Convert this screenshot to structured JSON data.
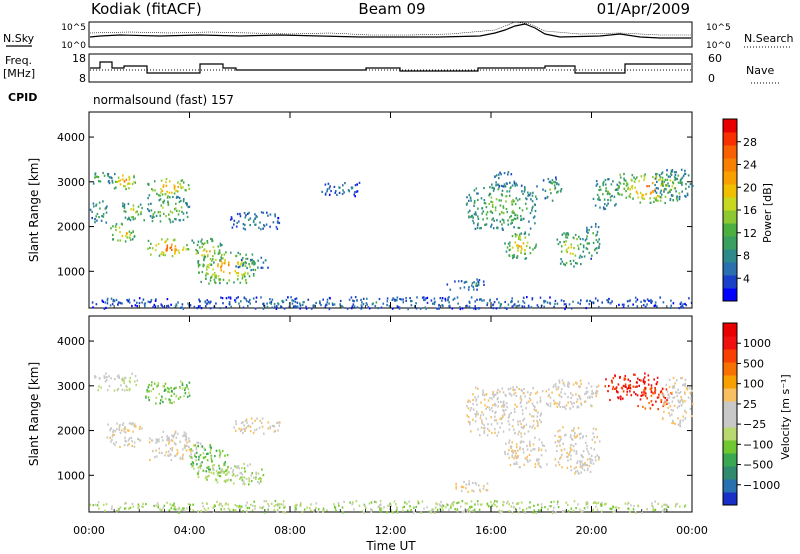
{
  "header": {
    "station": "Kodiak (fitACF)",
    "beam": "Beam 09",
    "date": "01/Apr/2009"
  },
  "noise_panel": {
    "left_label": "N.Sky",
    "right_label": "N.Search",
    "left_ticks": [
      "10^5",
      "10^0"
    ],
    "right_ticks": [
      "10^5",
      "10^0"
    ]
  },
  "freq_panel": {
    "left_label_line1": "Freq.",
    "left_label_line2": "[MHz]",
    "right_label": "Nave",
    "left_ticks": [
      "18",
      "8"
    ],
    "right_ticks": [
      "60",
      "0"
    ]
  },
  "cpid": {
    "label": "CPID",
    "text": "normalsound (fast) 157"
  },
  "chart_data": [
    {
      "type": "heatmap",
      "parameter": "Power",
      "ylabel": "Slant Range [km]",
      "ylim": [
        180,
        4560
      ],
      "yticks": [
        "1000",
        "2000",
        "3000",
        "4000"
      ],
      "xlim": [
        0,
        24
      ],
      "colorbar": {
        "label": "Power [dB]",
        "ticks": [
          "4",
          "8",
          "12",
          "16",
          "20",
          "24",
          "28"
        ],
        "range": [
          0,
          32
        ],
        "colors": [
          "#0000ff",
          "#1a3fc8",
          "#2a6fb0",
          "#2e8a8a",
          "#3aa060",
          "#4cb040",
          "#8cc830",
          "#c8d820",
          "#f0c000",
          "#f8a000",
          "#f88000",
          "#f86000",
          "#f83000",
          "#e80000"
        ]
      },
      "echo_regions": [
        {
          "t": [
            0.0,
            0.9
          ],
          "r": [
            2950,
            3250
          ],
          "v": 14
        },
        {
          "t": [
            0.9,
            1.9
          ],
          "r": [
            2850,
            3250
          ],
          "v": 24
        },
        {
          "t": [
            0.0,
            0.7
          ],
          "r": [
            2100,
            2600
          ],
          "v": 12
        },
        {
          "t": [
            0.8,
            1.8
          ],
          "r": [
            1650,
            2100
          ],
          "v": 22
        },
        {
          "t": [
            1.3,
            2.2
          ],
          "r": [
            2150,
            2600
          ],
          "v": 18
        },
        {
          "t": [
            2.3,
            4.0
          ],
          "r": [
            2700,
            3100
          ],
          "v": 24
        },
        {
          "t": [
            2.3,
            4.0
          ],
          "r": [
            2100,
            2700
          ],
          "v": 16
        },
        {
          "t": [
            2.3,
            4.0
          ],
          "r": [
            1350,
            1750
          ],
          "v": 27
        },
        {
          "t": [
            4.0,
            5.3
          ],
          "r": [
            1150,
            1750
          ],
          "v": 20
        },
        {
          "t": [
            4.3,
            6.6
          ],
          "r": [
            750,
            1450
          ],
          "v": 24
        },
        {
          "t": [
            5.6,
            7.6
          ],
          "r": [
            1950,
            2350
          ],
          "v": 8
        },
        {
          "t": [
            5.8,
            7.2
          ],
          "r": [
            1050,
            1350
          ],
          "v": 10
        },
        {
          "t": [
            9.2,
            10.8
          ],
          "r": [
            2700,
            3000
          ],
          "v": 7
        },
        {
          "t": [
            15.0,
            17.8
          ],
          "r": [
            1950,
            3000
          ],
          "v": 14
        },
        {
          "t": [
            16.5,
            17.8
          ],
          "r": [
            1300,
            1900
          ],
          "v": 20
        },
        {
          "t": [
            14.2,
            15.8
          ],
          "r": [
            600,
            850
          ],
          "v": 8
        },
        {
          "t": [
            16.0,
            17.0
          ],
          "r": [
            2900,
            3250
          ],
          "v": 10
        },
        {
          "t": [
            18.6,
            19.7
          ],
          "r": [
            1100,
            1900
          ],
          "v": 18
        },
        {
          "t": [
            19.7,
            20.3
          ],
          "r": [
            1300,
            2100
          ],
          "v": 14
        },
        {
          "t": [
            18.0,
            18.8
          ],
          "r": [
            2600,
            3150
          ],
          "v": 12
        },
        {
          "t": [
            20.0,
            21.0
          ],
          "r": [
            2400,
            3100
          ],
          "v": 12
        },
        {
          "t": [
            21.0,
            23.6
          ],
          "r": [
            2550,
            3200
          ],
          "v": 25
        },
        {
          "t": [
            22.5,
            24.0
          ],
          "r": [
            2600,
            3300
          ],
          "v": 12
        },
        {
          "t": [
            0.0,
            24.0
          ],
          "r": [
            180,
            450
          ],
          "v": 6
        }
      ]
    },
    {
      "type": "heatmap",
      "parameter": "Velocity",
      "ylabel": "Slant Range [km]",
      "ylim": [
        180,
        4560
      ],
      "yticks": [
        "1000",
        "2000",
        "3000",
        "4000"
      ],
      "xlim": [
        0,
        24
      ],
      "xticks": [
        "00:00",
        "04:00",
        "08:00",
        "12:00",
        "16:00",
        "20:00",
        "00:00"
      ],
      "xlabel": "Time UT",
      "colorbar": {
        "label": "Velocity [m s^-1]",
        "ticks": [
          "1000",
          "500",
          "100",
          "25",
          "−25",
          "−100",
          "−500",
          "−1000"
        ],
        "colors": [
          "#1830c8",
          "#2870b0",
          "#2f8a6e",
          "#3aa850",
          "#70c830",
          "#b8d870",
          "#c8c8c8",
          "#c8c8c8",
          "#f8c060",
          "#f8a000",
          "#f87000",
          "#f84000",
          "#f01010",
          "#e80000"
        ]
      },
      "echo_regions": [
        {
          "t": [
            0.0,
            1.9
          ],
          "r": [
            2900,
            3300
          ],
          "v": 6
        },
        {
          "t": [
            2.2,
            4.0
          ],
          "r": [
            2600,
            3150
          ],
          "v": 4
        },
        {
          "t": [
            0.7,
            2.2
          ],
          "r": [
            1650,
            2200
          ],
          "v": 7
        },
        {
          "t": [
            2.3,
            4.5
          ],
          "r": [
            1350,
            2000
          ],
          "v": 7
        },
        {
          "t": [
            4.0,
            5.5
          ],
          "r": [
            1050,
            1750
          ],
          "v": 4
        },
        {
          "t": [
            4.3,
            7.0
          ],
          "r": [
            800,
            1300
          ],
          "v": 5
        },
        {
          "t": [
            5.6,
            7.6
          ],
          "r": [
            1950,
            2300
          ],
          "v": 7
        },
        {
          "t": [
            14.5,
            16.0
          ],
          "r": [
            650,
            900
          ],
          "v": 7
        },
        {
          "t": [
            15.0,
            18.0
          ],
          "r": [
            1900,
            3000
          ],
          "v": 7
        },
        {
          "t": [
            16.5,
            18.2
          ],
          "r": [
            1200,
            1900
          ],
          "v": 7
        },
        {
          "t": [
            18.5,
            20.3
          ],
          "r": [
            1050,
            2100
          ],
          "v": 7
        },
        {
          "t": [
            18.0,
            20.3
          ],
          "r": [
            2500,
            3150
          ],
          "v": 7
        },
        {
          "t": [
            20.5,
            22.6
          ],
          "r": [
            2700,
            3300
          ],
          "v": 12
        },
        {
          "t": [
            21.8,
            23.2
          ],
          "r": [
            2500,
            3000
          ],
          "v": 11
        },
        {
          "t": [
            22.8,
            24.0
          ],
          "r": [
            2100,
            3200
          ],
          "v": 7
        },
        {
          "t": [
            0.0,
            24.0
          ],
          "r": [
            180,
            450
          ],
          "v": 5
        }
      ]
    }
  ]
}
